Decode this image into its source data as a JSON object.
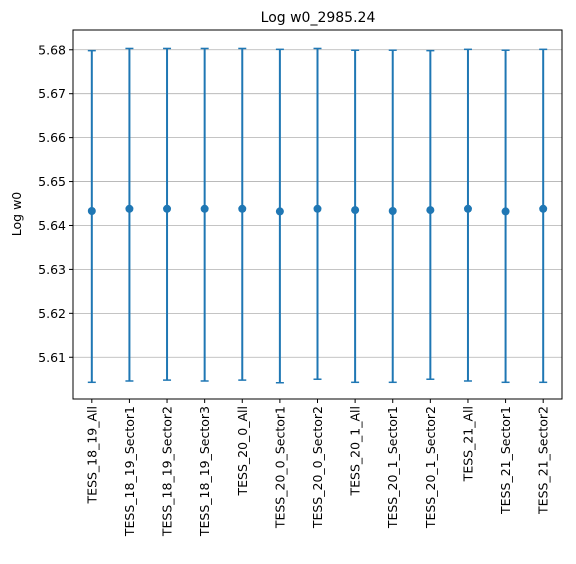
{
  "chart_data": {
    "type": "scatter",
    "title": "Log w0_2985.24",
    "xlabel": "",
    "ylabel": "Log w0",
    "ylim": [
      5.6005,
      5.6845
    ],
    "yticks": [
      5.61,
      5.62,
      5.63,
      5.64,
      5.65,
      5.66,
      5.67,
      5.68
    ],
    "ytick_labels": [
      "5.61",
      "5.62",
      "5.63",
      "5.64",
      "5.65",
      "5.66",
      "5.67",
      "5.68"
    ],
    "grid": "y",
    "categories": [
      "TESS_18_19_All",
      "TESS_18_19_Sector1",
      "TESS_18_19_Sector2",
      "TESS_18_19_Sector3",
      "TESS_20_0_All",
      "TESS_20_0_Sector1",
      "TESS_20_0_Sector2",
      "TESS_20_1_All",
      "TESS_20_1_Sector1",
      "TESS_20_1_Sector2",
      "TESS_21_All",
      "TESS_21_Sector1",
      "TESS_21_Sector2"
    ],
    "values": [
      5.6433,
      5.6438,
      5.6438,
      5.6438,
      5.6438,
      5.6432,
      5.6438,
      5.6435,
      5.6433,
      5.6435,
      5.6438,
      5.6432,
      5.6438
    ],
    "err_low": [
      5.6043,
      5.6046,
      5.6048,
      5.6046,
      5.6048,
      5.6042,
      5.605,
      5.6043,
      5.6043,
      5.605,
      5.6046,
      5.6043,
      5.6043
    ],
    "err_high": [
      5.6798,
      5.6803,
      5.6803,
      5.6803,
      5.6803,
      5.6801,
      5.6803,
      5.6799,
      5.6799,
      5.6798,
      5.6801,
      5.6799,
      5.6801
    ],
    "colors": {
      "series": "#1f77b4",
      "grid": "#b0b0b0",
      "axis": "#000000"
    }
  }
}
